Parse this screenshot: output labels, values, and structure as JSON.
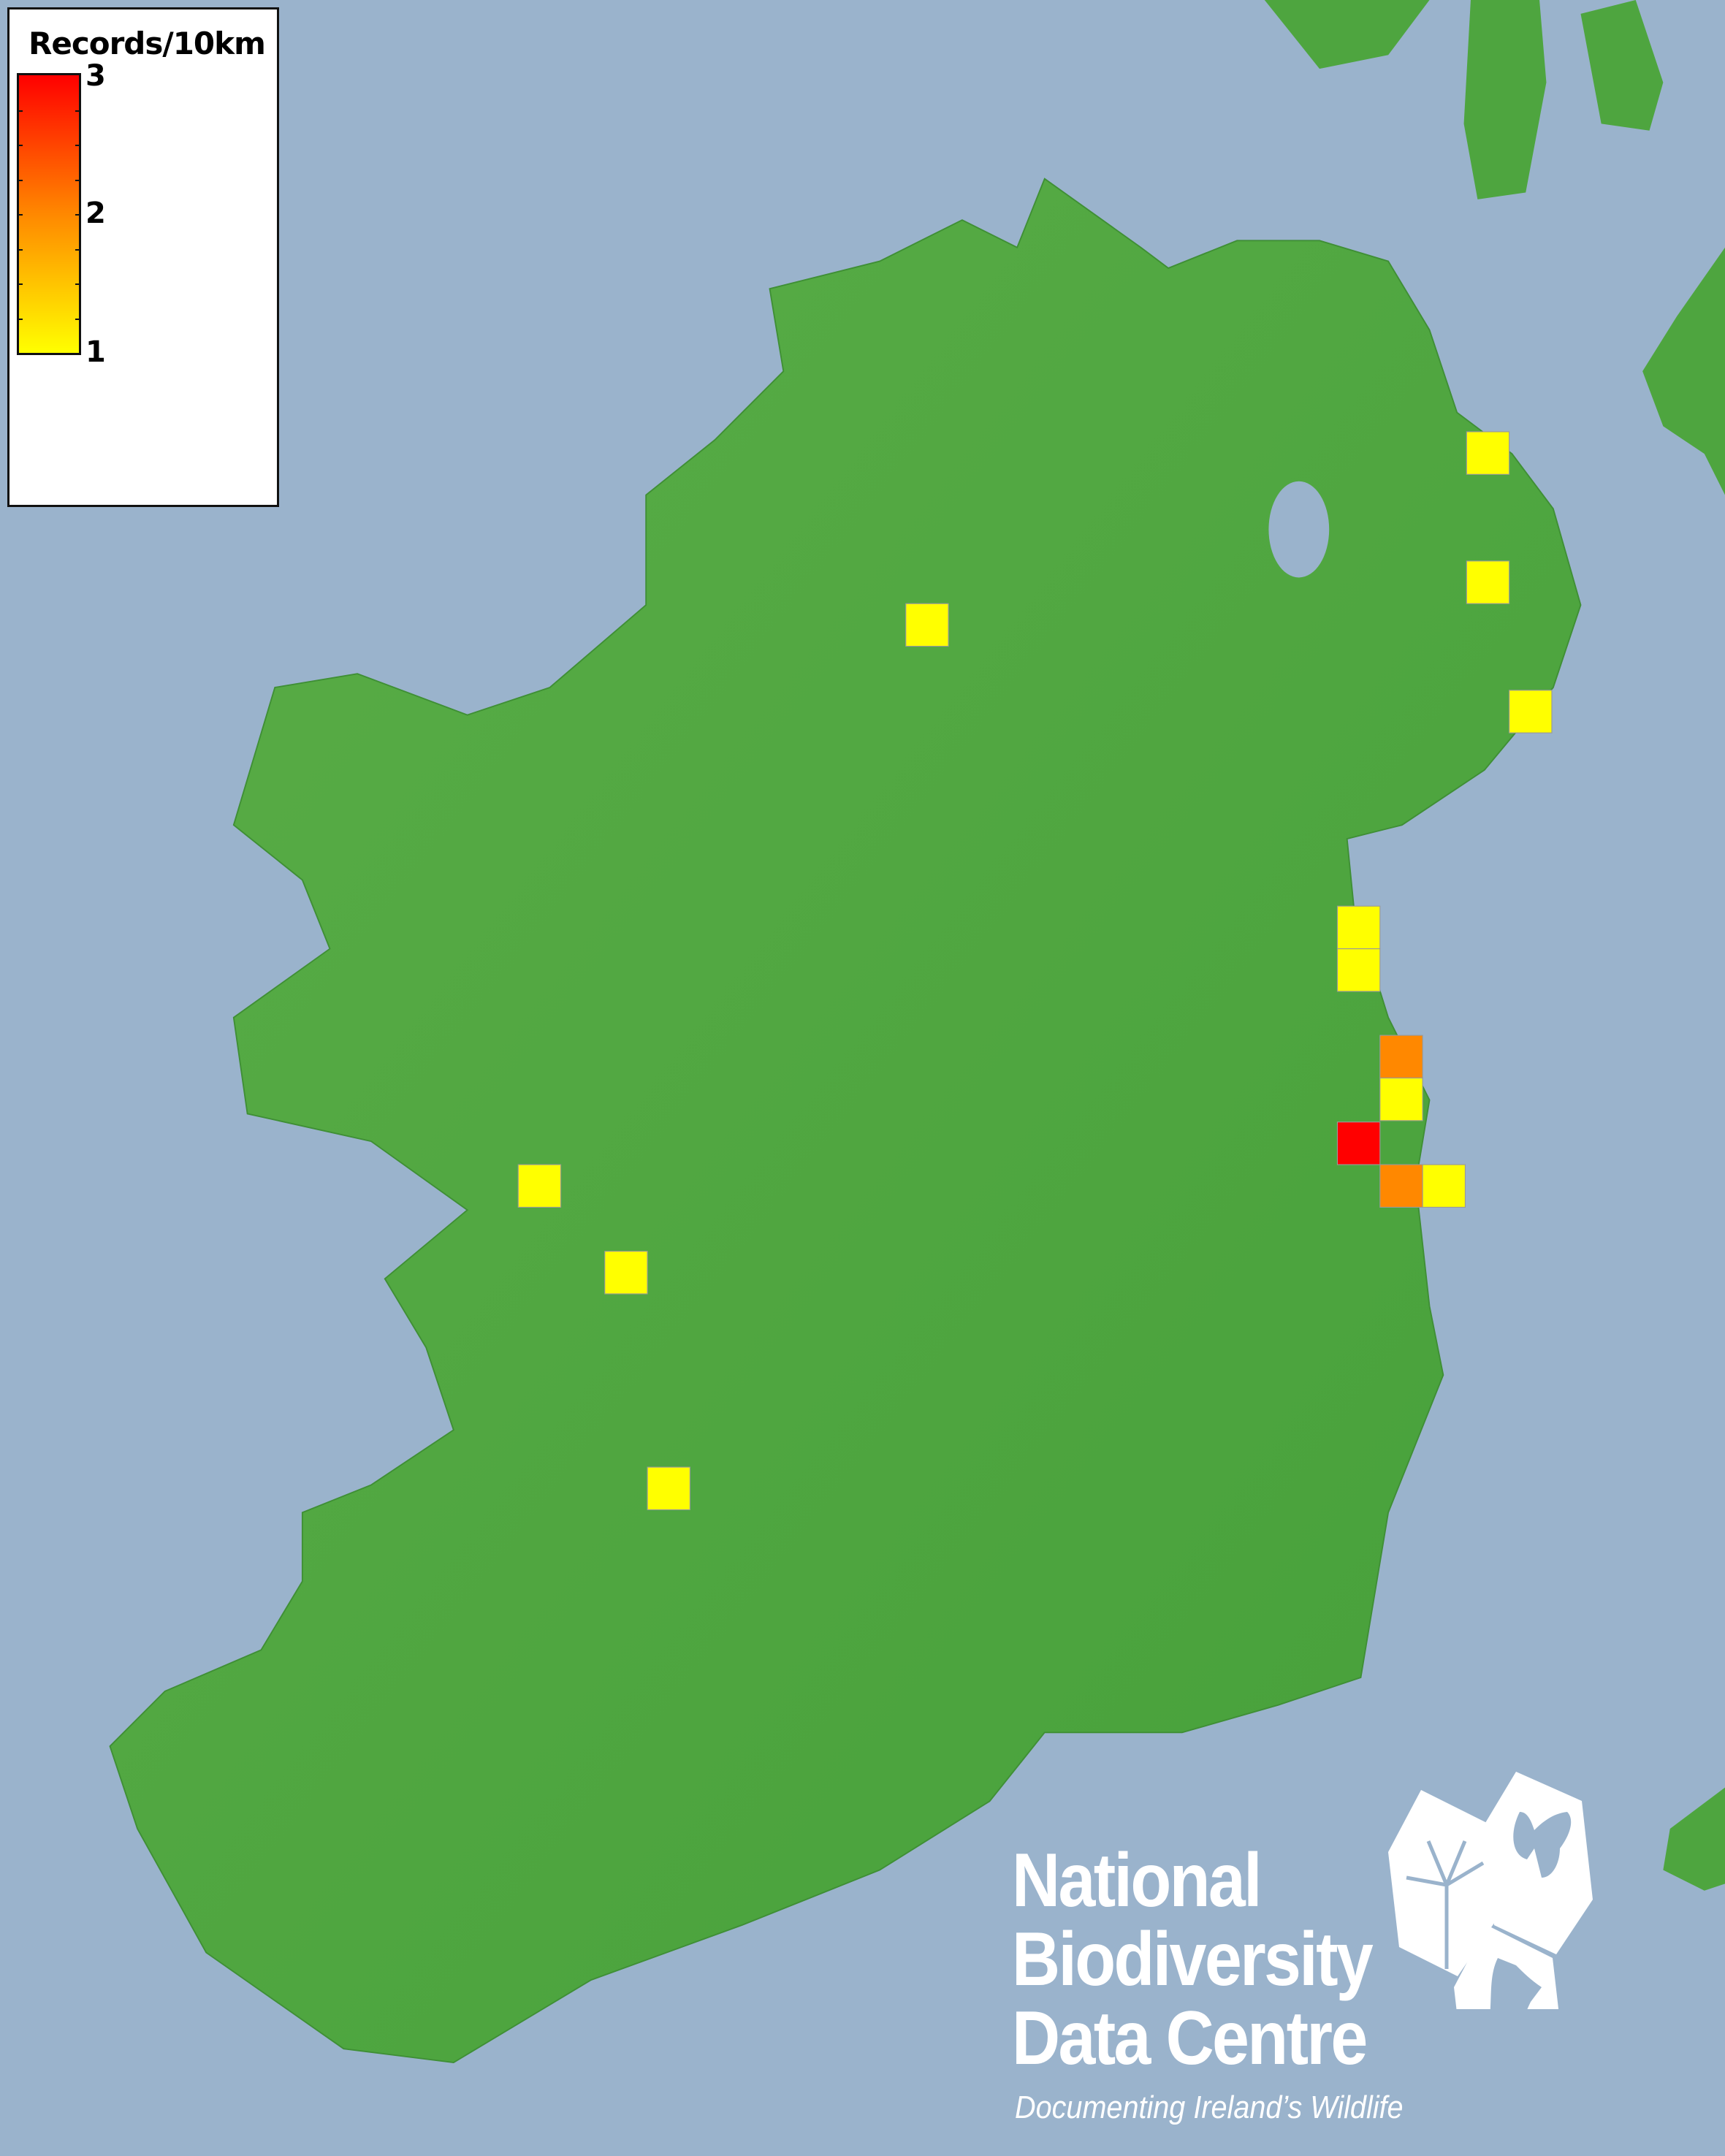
{
  "legend": {
    "title": "Records/10km",
    "max_label": "3",
    "mid_label": "2",
    "min_label": "1",
    "colors": {
      "low": "#ffff00",
      "mid": "#ff8800",
      "high": "#ff0000"
    }
  },
  "colors": {
    "sea": "#9ab3cc",
    "land": "#4ea53f"
  },
  "records": [
    {
      "count": 1
    },
    {
      "count": 1
    },
    {
      "count": 1
    },
    {
      "count": 1
    },
    {
      "count": 1
    },
    {
      "count": 1
    },
    {
      "count": 2
    },
    {
      "count": 1
    },
    {
      "count": 3
    },
    {
      "count": 2
    },
    {
      "count": 1
    },
    {
      "count": 1
    },
    {
      "count": 1
    },
    {
      "count": 1
    }
  ],
  "logo": {
    "line1": "National",
    "line2": "Biodiversity",
    "line3": "Data Centre",
    "tagline": "Documenting Ireland’s Wildlife",
    "icons": [
      "tree-icon",
      "butterfly-icon",
      "seahorse-icon"
    ]
  }
}
